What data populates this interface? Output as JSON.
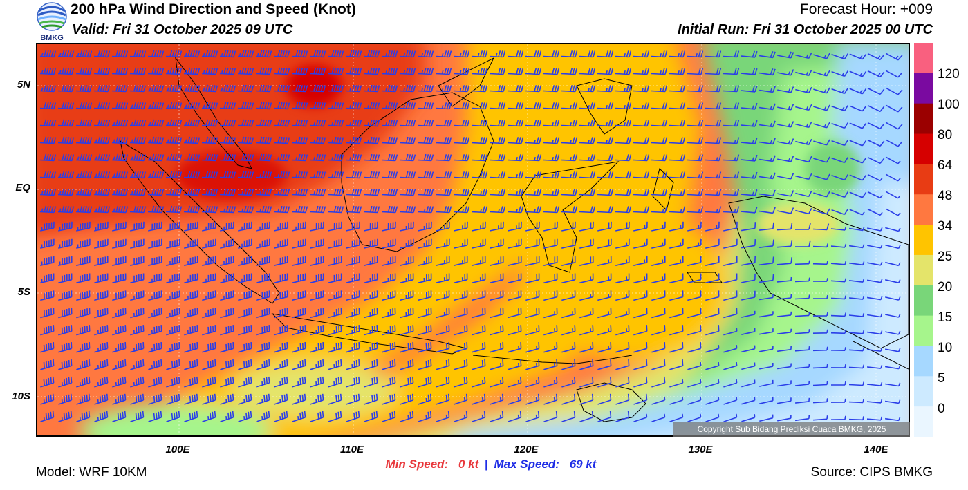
{
  "header": {
    "title": "200 hPa Wind Direction and Speed (Knot)",
    "valid": "Valid: Fri 31 October 2025 09 UTC",
    "forecast_hour": "Forecast Hour: +009",
    "initial_run": "Initial Run: Fri 31 October 2025 00 UTC",
    "logo_text": "BMKG"
  },
  "axes": {
    "lat_labels": [
      "5N",
      "EQ",
      "5S",
      "10S"
    ],
    "lon_labels": [
      "100E",
      "110E",
      "120E",
      "130E",
      "140E"
    ]
  },
  "colorbar": {
    "labels": [
      "120",
      "100",
      "80",
      "64",
      "48",
      "34",
      "25",
      "20",
      "15",
      "10",
      "5",
      "0"
    ],
    "colors": [
      "#f9607f",
      "#7a0aa0",
      "#9b0000",
      "#d60000",
      "#e83c14",
      "#ff7840",
      "#ffc400",
      "#e4e46a",
      "#79d679",
      "#a6f58c",
      "#a6d8ff",
      "#cdeaff",
      "#eaf6ff"
    ]
  },
  "speed": {
    "min_label": "Min Speed:",
    "min_value": "0 kt",
    "separator": "|",
    "max_label": "Max Speed:",
    "max_value": "69 kt",
    "min_color": "#e8383c",
    "max_color": "#1e2de6"
  },
  "footer": {
    "model": "Model: WRF 10KM",
    "source": "Source: CIPS BMKG",
    "copyright": "Copyright Sub Bidang Prediksi Cuaca BMKG, 2025"
  },
  "map": {
    "domain": "Indonesia and surrounding region",
    "barb_color": "#2a3ee8",
    "coastline_color": "#000000"
  }
}
